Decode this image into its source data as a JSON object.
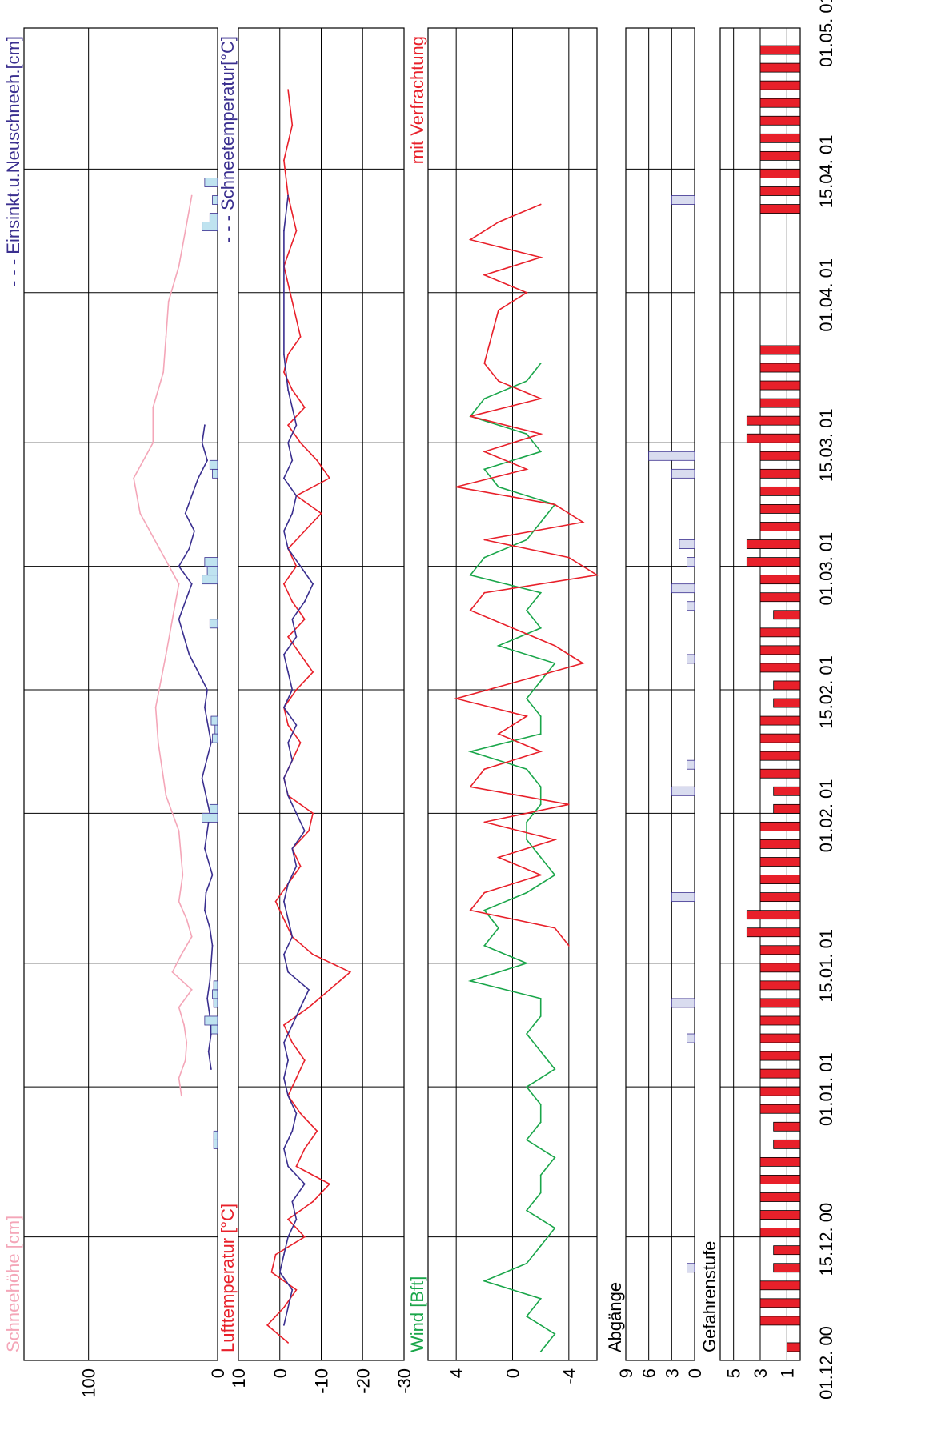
{
  "chart_data": {
    "type": "line",
    "orientation": "rotated-90-ccw",
    "x_tick_labels": [
      "01.12. 00",
      "15.12. 00",
      "01.01. 01",
      "15.01. 01",
      "01.02. 01",
      "15.02. 01",
      "01.03. 01",
      "15.03. 01",
      "01.04. 01",
      "15.04. 01",
      "01.05. 01"
    ],
    "panels": [
      {
        "id": "snow",
        "labels": [
          "Schneehöhe [cm]",
          "- - - Einsinkt.u.Neuschneeh.[cm]"
        ],
        "label_colors": [
          "#f4a6b8",
          "#3a2f8f"
        ],
        "y_ticks": [
          "100",
          "0"
        ],
        "ylim": [
          0,
          150
        ],
        "series": [
          {
            "name": "Schneehöhe [cm]",
            "color": "#f4a6b8",
            "x": [
              30,
              32,
              34,
              36,
              38,
              40,
              42,
              44,
              46,
              48,
              50,
              52,
              55,
              60,
              64,
              70,
              74,
              80,
              84,
              88,
              92,
              96,
              100,
              104,
              108,
              112,
              116,
              120,
              124,
              128,
              132
            ],
            "y": [
              28,
              30,
              25,
              24,
              26,
              30,
              20,
              35,
              28,
              20,
              24,
              30,
              27,
              30,
              40,
              46,
              48,
              40,
              35,
              30,
              45,
              60,
              65,
              50,
              50,
              42,
              40,
              38,
              30,
              25,
              20
            ]
          },
          {
            "name": "Einsinkt.u.Neuschneeh.[cm]",
            "color": "#3a2f8f",
            "x": [
              33,
              35,
              37,
              39,
              41,
              43,
              45,
              47,
              49,
              51,
              53,
              55,
              58,
              62,
              66,
              70,
              74,
              76,
              78,
              80,
              84,
              88,
              90,
              92,
              94,
              96,
              98,
              100,
              102,
              104,
              106
            ],
            "y": [
              5,
              7,
              5,
              6,
              8,
              6,
              5,
              4,
              6,
              10,
              9,
              4,
              10,
              6,
              12,
              5,
              10,
              8,
              15,
              22,
              30,
              20,
              30,
              22,
              18,
              25,
              20,
              15,
              8,
              12,
              10
            ]
          }
        ],
        "bars": {
          "name": "Neuschnee",
          "x": [
            24,
            25,
            37,
            38,
            40,
            41,
            42,
            61,
            62,
            70,
            71,
            72,
            83,
            88,
            89,
            90,
            100,
            101,
            128,
            129,
            131,
            133
          ],
          "y": [
            3,
            3,
            5,
            10,
            3,
            4,
            3,
            12,
            6,
            4,
            2,
            5,
            6,
            12,
            8,
            10,
            4,
            6,
            12,
            6,
            4,
            10
          ]
        }
      },
      {
        "id": "temperature",
        "labels": [
          "Lufttemperatur [°C]",
          "- - - Schneetemperatur[°C]"
        ],
        "label_colors": [
          "#e8202a",
          "#3a2f8f"
        ],
        "y_ticks": [
          "10",
          "0",
          "-10",
          "-20",
          "-30"
        ],
        "ylim": [
          -30,
          10
        ],
        "series": [
          {
            "name": "Lufttemperatur [°C]",
            "color": "#e8202a",
            "x": [
              2,
              4,
              6,
              8,
              10,
              12,
              14,
              16,
              18,
              20,
              22,
              24,
              26,
              28,
              30,
              32,
              34,
              36,
              38,
              40,
              42,
              44,
              46,
              48,
              50,
              52,
              54,
              56,
              58,
              60,
              62,
              64,
              66,
              68,
              70,
              72,
              74,
              76,
              78,
              80,
              82,
              84,
              86,
              88,
              90,
              92,
              94,
              96,
              98,
              100,
              102,
              104,
              106,
              108,
              110,
              112,
              114,
              116,
              120,
              124,
              128,
              132,
              136,
              140,
              144
            ],
            "y": [
              -2,
              3,
              -1,
              -4,
              2,
              1,
              -6,
              -2,
              -8,
              -12,
              -4,
              -6,
              -9,
              -5,
              -2,
              -4,
              -6,
              -3,
              -1,
              -7,
              -12,
              -17,
              -8,
              -3,
              -1,
              1,
              -2,
              -5,
              -3,
              -7,
              -8,
              -2,
              -1,
              -3,
              -5,
              -2,
              -1,
              -4,
              -8,
              -5,
              -2,
              -6,
              -3,
              -1,
              -4,
              -2,
              -6,
              -10,
              -4,
              -12,
              -9,
              -5,
              -2,
              -6,
              -3,
              -1,
              -2,
              -5,
              -3,
              -1,
              -4,
              -2,
              -1,
              -3,
              -2
            ]
          },
          {
            "name": "Schneetemperatur[°C]",
            "color": "#3a2f8f",
            "x": [
              4,
              6,
              8,
              10,
              12,
              14,
              16,
              18,
              20,
              22,
              24,
              26,
              28,
              30,
              32,
              34,
              36,
              38,
              40,
              42,
              44,
              46,
              48,
              50,
              52,
              54,
              56,
              58,
              60,
              62,
              64,
              66,
              68,
              70,
              72,
              74,
              76,
              78,
              80,
              82,
              84,
              86,
              88,
              90,
              92,
              94,
              96,
              98,
              100,
              102,
              104,
              106,
              110,
              114,
              128,
              132
            ],
            "y": [
              -1,
              -2,
              -3,
              0,
              -1,
              -2,
              -4,
              -3,
              -6,
              -2,
              -1,
              -3,
              -4,
              -2,
              -1,
              -2,
              -1,
              -3,
              -5,
              -7,
              -2,
              -1,
              -3,
              -2,
              -1,
              -2,
              -4,
              -3,
              -6,
              -4,
              -2,
              -1,
              -3,
              -2,
              -4,
              -1,
              -3,
              -2,
              -1,
              -4,
              -3,
              -6,
              -8,
              -5,
              -2,
              -1,
              -3,
              -4,
              -1,
              -3,
              -2,
              -4,
              -2,
              -1,
              -1,
              -2
            ]
          }
        ]
      },
      {
        "id": "wind",
        "labels": [
          "Wind [Bft]",
          "mit Verfrachtung"
        ],
        "label_colors": [
          "#1aa64a",
          "#e8202a"
        ],
        "y_ticks": [
          "4",
          "0",
          "-4"
        ],
        "ylim": [
          -6,
          6
        ],
        "series": [
          {
            "name": "Wind [Bft]",
            "color": "#1aa64a",
            "x": [
              1,
              3,
              5,
              7,
              9,
              11,
              13,
              15,
              17,
              19,
              21,
              23,
              25,
              27,
              29,
              31,
              33,
              35,
              37,
              39,
              41,
              43,
              45,
              47,
              49,
              51,
              53,
              55,
              57,
              59,
              61,
              63,
              65,
              67,
              69,
              71,
              73,
              75,
              77,
              79,
              81,
              83,
              85,
              87,
              89,
              91,
              93,
              95,
              97,
              99,
              101,
              103,
              105,
              107,
              109,
              111,
              113
            ],
            "y": [
              -2,
              -3,
              -1,
              -2,
              2,
              -1,
              -2,
              -3,
              -1,
              -2,
              -2,
              -3,
              -1,
              -2,
              -2,
              -1,
              -3,
              -2,
              -1,
              -2,
              -2,
              3,
              -1,
              2,
              1,
              2,
              -1,
              -3,
              -2,
              -1,
              -1,
              -2,
              -2,
              -1,
              3,
              -2,
              -2,
              -1,
              -2,
              -3,
              1,
              -2,
              -1,
              -2,
              3,
              2,
              -1,
              -2,
              -3,
              1,
              2,
              -2,
              -1,
              3,
              2,
              -1,
              -2
            ]
          },
          {
            "name": "mit Verfrachtung",
            "color": "#e8202a",
            "x": [
              47,
              49,
              51,
              53,
              55,
              57,
              59,
              61,
              63,
              65,
              67,
              69,
              71,
              73,
              75,
              79,
              81,
              85,
              87,
              89,
              91,
              93,
              95,
              97,
              99,
              101,
              103,
              105,
              107,
              109,
              111,
              113,
              119,
              121,
              123,
              125,
              127,
              129,
              131
            ],
            "y": [
              -4,
              -3,
              3,
              2,
              -2,
              1,
              -3,
              2,
              -4,
              3,
              2,
              -2,
              1,
              -1,
              4,
              -5,
              -3,
              3,
              2,
              -6,
              -4,
              2,
              -5,
              -3,
              4,
              -1,
              2,
              -2,
              3,
              -2,
              1,
              2,
              1,
              -1,
              2,
              -2,
              3,
              1,
              -2
            ]
          }
        ]
      },
      {
        "id": "abgaenge",
        "labels": [
          "Abgänge"
        ],
        "label_colors": [
          "#000000"
        ],
        "y_ticks": [
          "9",
          "6",
          "3",
          "0"
        ],
        "ylim": [
          0,
          9
        ],
        "bars": {
          "name": "Abgänge",
          "x": [
            10,
            36,
            40,
            52,
            64,
            67,
            79,
            85,
            87,
            90,
            92,
            100,
            102,
            131
          ],
          "y": [
            1,
            1,
            3,
            3,
            3,
            1,
            1,
            1,
            3,
            1,
            2,
            3,
            6,
            3
          ]
        }
      },
      {
        "id": "gefahrenstufe",
        "labels": [
          "Gefahrenstufe"
        ],
        "label_colors": [
          "#000000"
        ],
        "y_ticks": [
          "5",
          "3",
          "1"
        ],
        "ylim": [
          0,
          6
        ],
        "bars": {
          "name": "Gefahrenstufe",
          "x": [
            1,
            4,
            6,
            8,
            10,
            12,
            14,
            16,
            18,
            20,
            22,
            24,
            26,
            28,
            30,
            32,
            34,
            36,
            38,
            40,
            42,
            44,
            46,
            48,
            50,
            52,
            54,
            56,
            58,
            60,
            62,
            64,
            66,
            68,
            70,
            72,
            74,
            76,
            78,
            80,
            82,
            84,
            86,
            88,
            90,
            92,
            94,
            96,
            98,
            100,
            102,
            104,
            106,
            108,
            110,
            112,
            114,
            130,
            132,
            134,
            136,
            138,
            140,
            142,
            144,
            146,
            148
          ],
          "y": [
            1,
            3,
            3,
            3,
            2,
            2,
            3,
            3,
            3,
            3,
            3,
            2,
            2,
            3,
            3,
            3,
            3,
            3,
            3,
            3,
            3,
            3,
            3,
            4,
            4,
            3,
            3,
            3,
            3,
            3,
            2,
            2,
            3,
            3,
            3,
            3,
            2,
            2,
            3,
            3,
            3,
            2,
            3,
            3,
            4,
            4,
            3,
            3,
            3,
            3,
            3,
            4,
            4,
            3,
            3,
            3,
            3,
            3,
            3,
            3,
            3,
            3,
            3,
            3,
            3,
            3,
            3
          ]
        }
      }
    ]
  }
}
